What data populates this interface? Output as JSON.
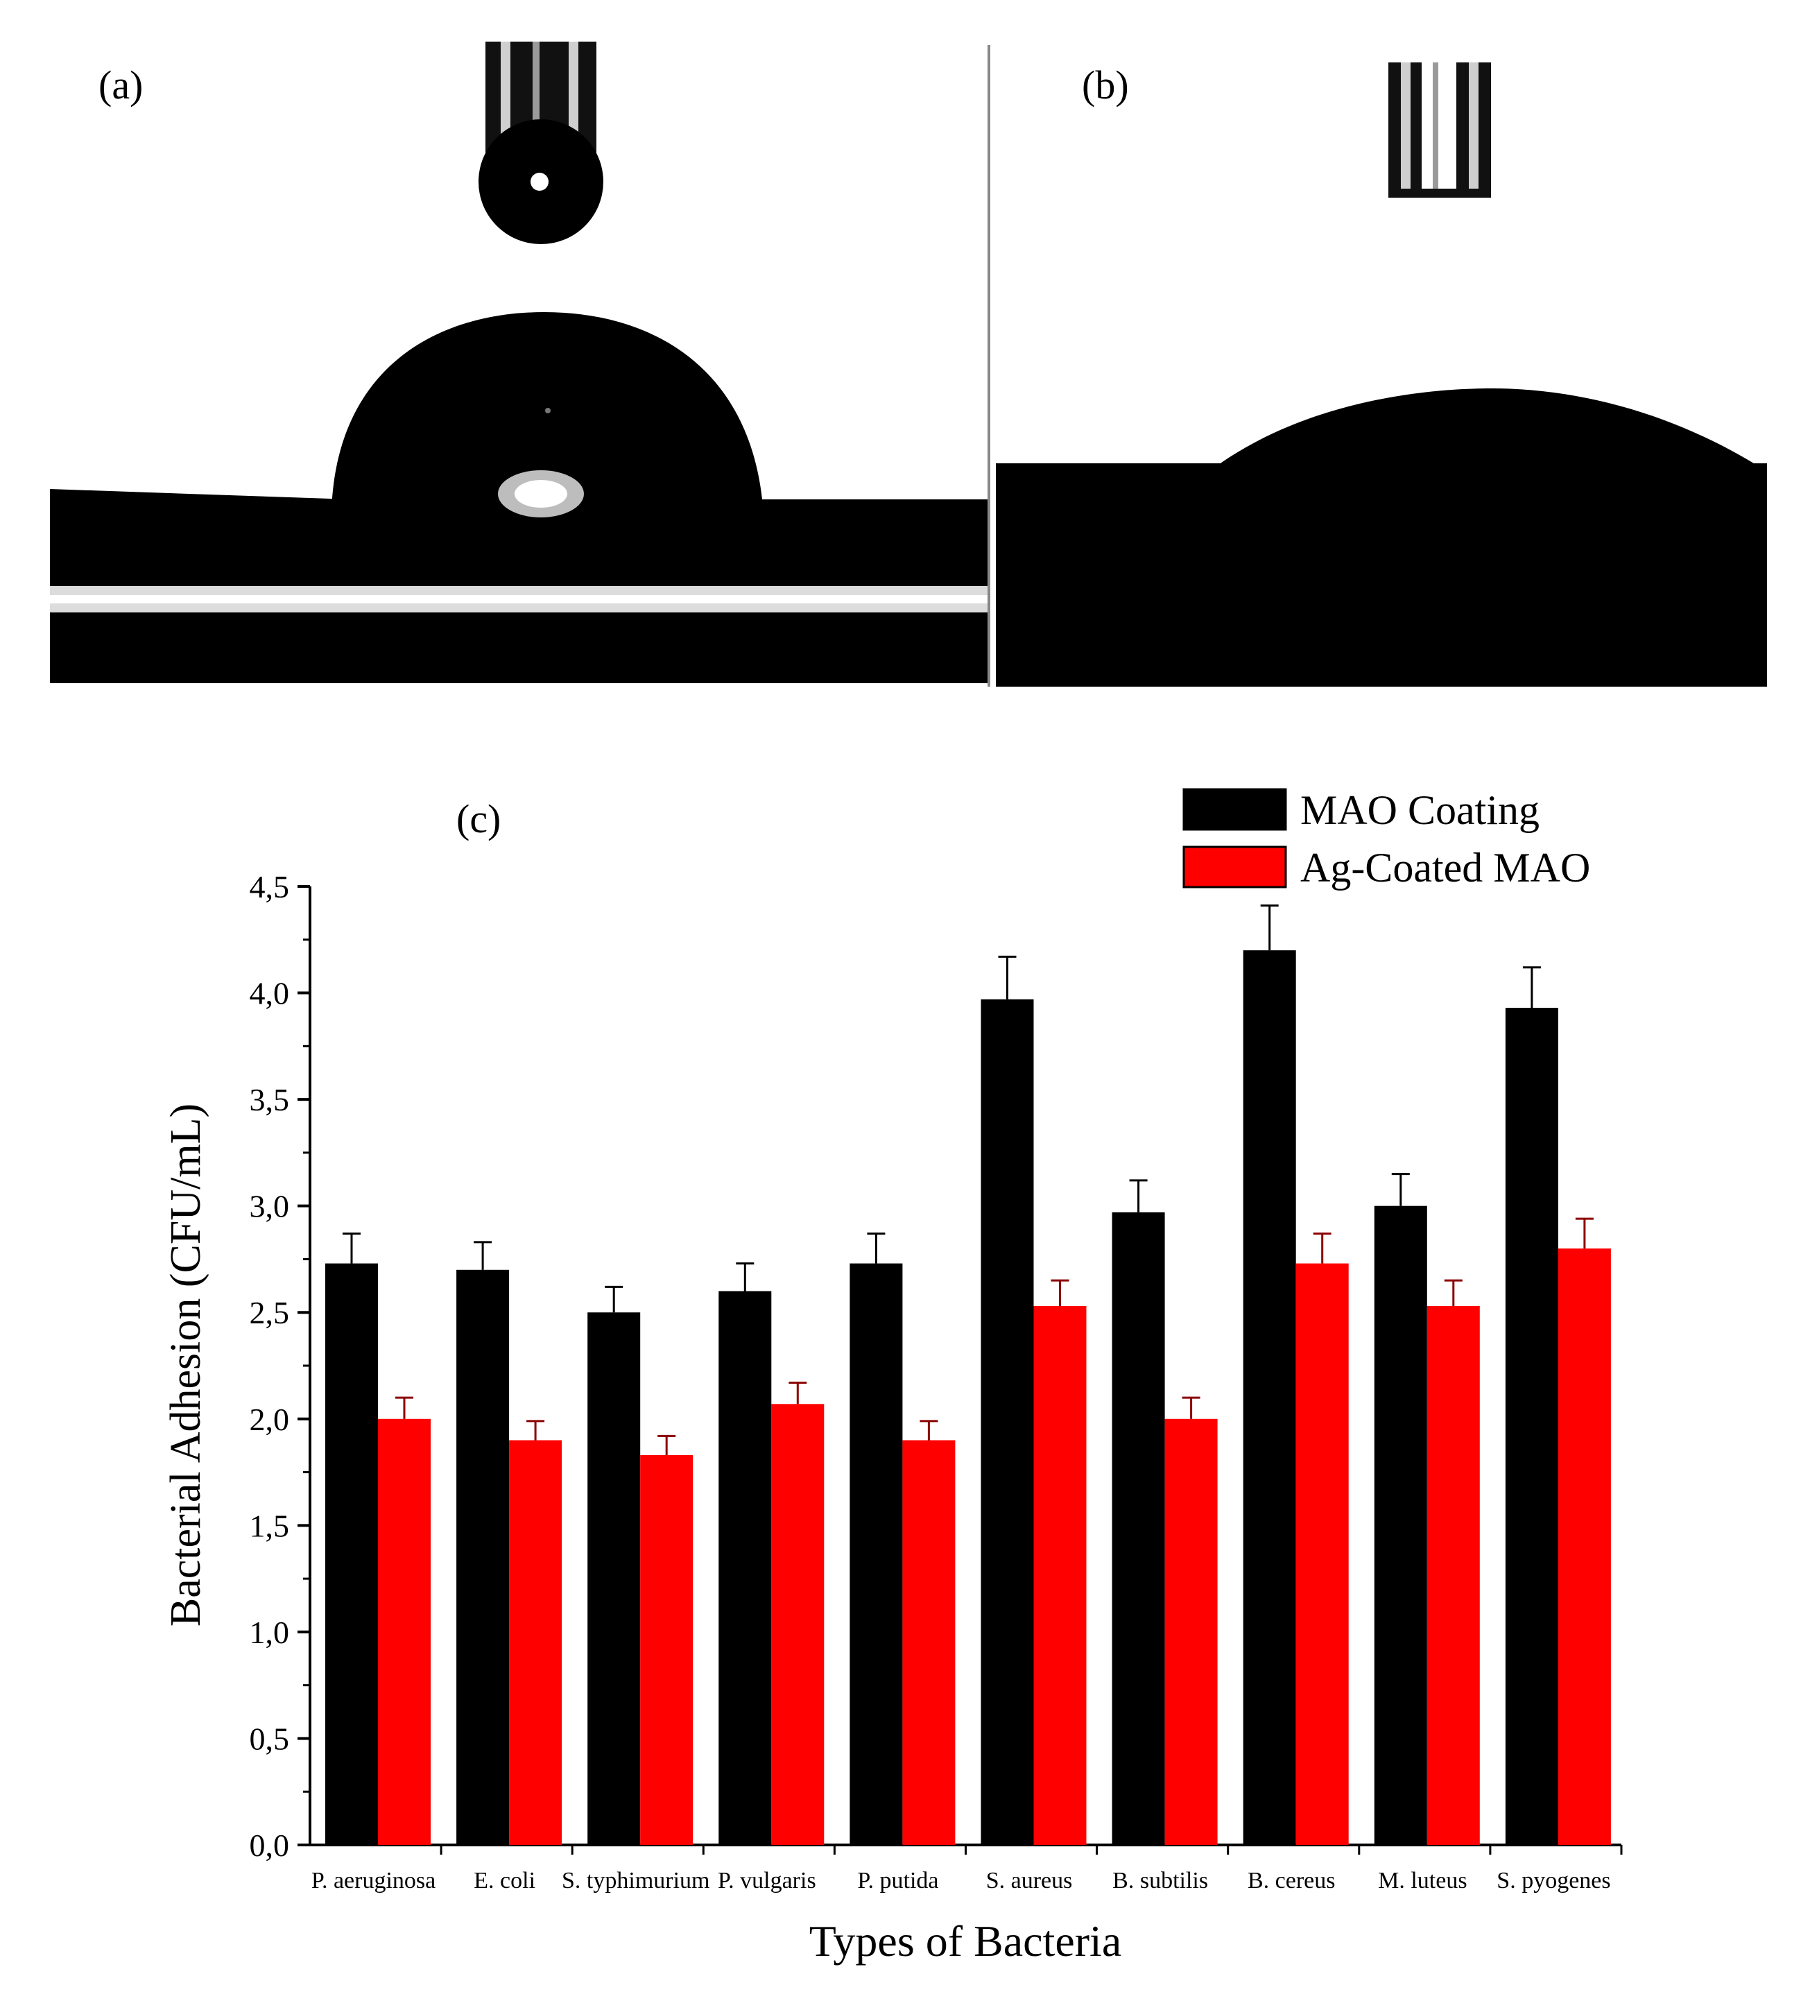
{
  "panels": {
    "a": {
      "label": "(a)"
    },
    "b": {
      "label": "(b)"
    },
    "c": {
      "label": "(c)"
    }
  },
  "chart_data": {
    "type": "bar",
    "title": "",
    "xlabel": "Types of Bacteria",
    "ylabel": "Bacterial Adhesion (CFU/mL)",
    "ylim": [
      0,
      4.5
    ],
    "yticks": [
      "0,0",
      "0,5",
      "1,0",
      "1,5",
      "2,0",
      "2,5",
      "3,0",
      "3,5",
      "4,0",
      "4,5"
    ],
    "categories": [
      "P. aeruginosa",
      "E. coli",
      "S. typhimurium",
      "P. vulgaris",
      "P. putida",
      "S. aureus",
      "B. subtilis",
      "B. cereus",
      "M. luteus",
      "S. pyogenes"
    ],
    "legend_position": "top-right",
    "grid": false,
    "series": [
      {
        "name": "MAO Coating",
        "color": "#000000",
        "values": [
          2.73,
          2.7,
          2.5,
          2.6,
          2.73,
          3.97,
          2.97,
          4.2,
          3.0,
          3.93
        ],
        "errors": [
          0.14,
          0.13,
          0.12,
          0.13,
          0.14,
          0.2,
          0.15,
          0.21,
          0.15,
          0.19
        ]
      },
      {
        "name": "Ag-Coated MAO",
        "color": "#ff0000",
        "values": [
          2.0,
          1.9,
          1.83,
          2.07,
          1.9,
          2.53,
          2.0,
          2.73,
          2.53,
          2.8
        ],
        "errors": [
          0.1,
          0.09,
          0.09,
          0.1,
          0.09,
          0.12,
          0.1,
          0.14,
          0.12,
          0.14
        ]
      }
    ]
  }
}
